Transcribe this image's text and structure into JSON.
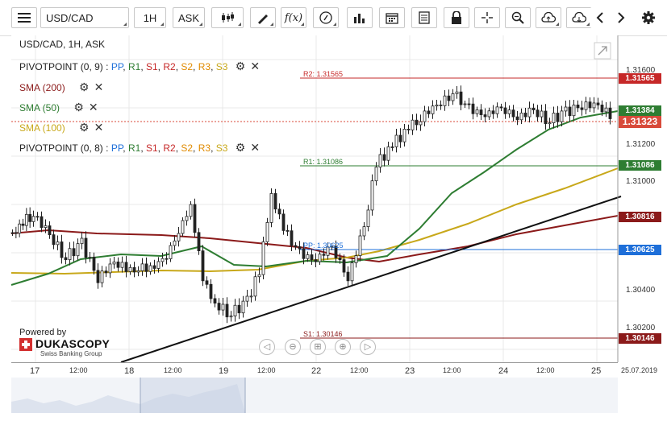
{
  "toolbar": {
    "symbol": "USD/CAD",
    "timeframe": "1H",
    "price_type": "ASK",
    "fx_label": "f(x)"
  },
  "chart": {
    "title": "USD/CAD, 1H, ASK",
    "indicators": [
      {
        "name": "PIVOTPOINT (0, 9)",
        "parts": [
          "PP",
          "R1",
          "S1",
          "R2",
          "S2",
          "R3",
          "S3"
        ]
      },
      {
        "name": "SMA (200)",
        "color": "#8b1a1a"
      },
      {
        "name": "SMA (50)",
        "color": "#2e7d32"
      },
      {
        "name": "SMA (100)",
        "color": "#c8a81a"
      },
      {
        "name": "PIVOTPOINT (0, 8)",
        "parts": [
          "PP",
          "R1",
          "S1",
          "R2",
          "S2",
          "R3",
          "S3"
        ]
      }
    ],
    "pivot_part_colors": [
      "#1e6fd9",
      "#2e7d32",
      "#c62828",
      "#c62828",
      "#e08a00",
      "#e08a00",
      "#c8a81a"
    ],
    "level_labels": {
      "r2": "R2: 1.31565",
      "r1": "R1: 1.31086",
      "pp": "PP: 1.30625",
      "s1": "S1: 1.30146"
    },
    "price_axis": [
      "1.31600",
      "1.31200",
      "1.31000",
      "1.30400",
      "1.30200"
    ],
    "price_tags": [
      {
        "value": "1.31565",
        "color": "#c62828"
      },
      {
        "value": "1.31384",
        "color": "#2e7d32"
      },
      {
        "value": "1.31323",
        "color": "#d84a3a"
      },
      {
        "value": "1.31086",
        "color": "#2e7d32"
      },
      {
        "value": "1.30816",
        "color": "#8b1a1a"
      },
      {
        "value": "1.30625",
        "color": "#1e6fd9"
      },
      {
        "value": "1.30146",
        "color": "#8b1a1a"
      }
    ],
    "time_axis": [
      "17",
      "12:00",
      "18",
      "12:00",
      "19",
      "12:00",
      "22",
      "12:00",
      "23",
      "12:00",
      "24",
      "12:00",
      "25",
      "25.07.2019"
    ]
  },
  "branding": {
    "powered_by": "Powered by",
    "company": "DUKASCOPY",
    "subtitle": "Swiss Banking Group"
  }
}
